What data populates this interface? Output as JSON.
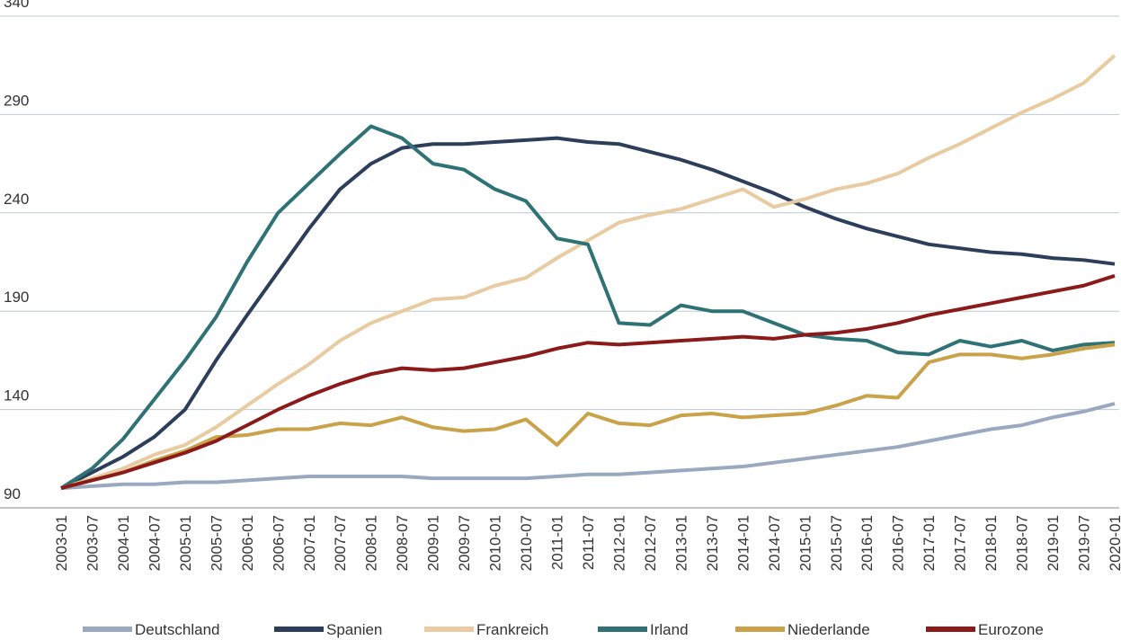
{
  "chart_data": {
    "type": "line",
    "categories": [
      "2003-01",
      "2003-07",
      "2004-01",
      "2004-07",
      "2005-01",
      "2005-07",
      "2006-01",
      "2006-07",
      "2007-01",
      "2007-07",
      "2008-01",
      "2008-07",
      "2009-01",
      "2009-07",
      "2010-01",
      "2010-07",
      "2011-01",
      "2011-07",
      "2012-01",
      "2012-07",
      "2013-01",
      "2013-07",
      "2014-01",
      "2014-07",
      "2015-01",
      "2015-07",
      "2016-01",
      "2016-07",
      "2017-01",
      "2017-07",
      "2018-01",
      "2018-07",
      "2019-01",
      "2019-07",
      "2020-01"
    ],
    "series": [
      {
        "name": "Deutschland",
        "color": "#9aa8c0",
        "values": [
          100,
          101,
          102,
          102,
          103,
          103,
          104,
          105,
          106,
          106,
          106,
          106,
          105,
          105,
          105,
          105,
          106,
          107,
          107,
          108,
          109,
          110,
          111,
          113,
          115,
          117,
          119,
          121,
          124,
          127,
          130,
          132,
          136,
          139,
          143
        ]
      },
      {
        "name": "Spanien",
        "color": "#2c3e5a",
        "values": [
          100,
          108,
          116,
          126,
          140,
          165,
          188,
          210,
          232,
          252,
          265,
          273,
          275,
          275,
          276,
          277,
          278,
          276,
          275,
          271,
          267,
          262,
          256,
          250,
          243,
          237,
          232,
          228,
          224,
          222,
          220,
          219,
          217,
          216,
          214
        ]
      },
      {
        "name": "Frankreich",
        "color": "#e8cba0",
        "values": [
          100,
          105,
          110,
          117,
          122,
          131,
          142,
          153,
          163,
          175,
          184,
          190,
          196,
          197,
          203,
          207,
          217,
          226,
          235,
          239,
          242,
          247,
          252,
          243,
          247,
          252,
          255,
          260,
          268,
          275,
          283,
          291,
          298,
          306,
          320
        ]
      },
      {
        "name": "Irland",
        "color": "#2f7276",
        "values": [
          100,
          110,
          125,
          145,
          165,
          187,
          215,
          240,
          255,
          270,
          284,
          278,
          265,
          262,
          252,
          246,
          227,
          224,
          184,
          183,
          193,
          190,
          190,
          184,
          178,
          176,
          175,
          169,
          168,
          175,
          172,
          175,
          170,
          173,
          174
        ]
      },
      {
        "name": "Niederlande",
        "color": "#c9a24a",
        "values": [
          100,
          104,
          108,
          114,
          119,
          126,
          127,
          130,
          130,
          133,
          132,
          136,
          131,
          129,
          130,
          135,
          122,
          138,
          133,
          132,
          137,
          138,
          136,
          137,
          138,
          142,
          147,
          146,
          164,
          168,
          168,
          166,
          168,
          171,
          173
        ]
      },
      {
        "name": "Eurozone",
        "color": "#8b1a1a",
        "values": [
          100,
          104,
          108,
          113,
          118,
          124,
          132,
          140,
          147,
          153,
          158,
          161,
          160,
          161,
          164,
          167,
          171,
          174,
          173,
          174,
          175,
          176,
          177,
          176,
          178,
          179,
          181,
          184,
          188,
          191,
          194,
          197,
          200,
          203,
          208
        ]
      }
    ],
    "ylim": [
      90,
      340
    ],
    "yticks": [
      90,
      140,
      190,
      240,
      290,
      340
    ],
    "grid": true,
    "legend": "bottom"
  }
}
